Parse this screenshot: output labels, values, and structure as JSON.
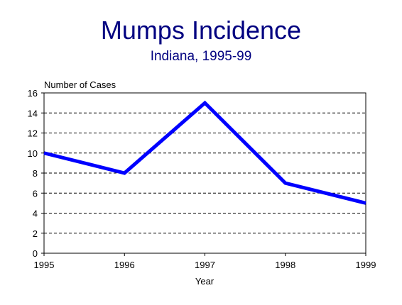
{
  "chart_data": {
    "type": "line",
    "title": "Mumps Incidence",
    "subtitle": "Indiana, 1995-99",
    "xlabel": "Year",
    "ylabel": "Number of Cases",
    "x": [
      "1995",
      "1996",
      "1997",
      "1998",
      "1999"
    ],
    "series": [
      {
        "values": [
          10,
          8,
          15,
          7,
          5
        ]
      }
    ],
    "ylim": [
      0,
      16
    ],
    "yticks": [
      0,
      2,
      4,
      6,
      8,
      10,
      12,
      14,
      16
    ],
    "grid": true,
    "legend": "none",
    "colors": {
      "title": "#000080",
      "line": "#0000ff",
      "grid": "#000000",
      "text": "#000000"
    }
  }
}
